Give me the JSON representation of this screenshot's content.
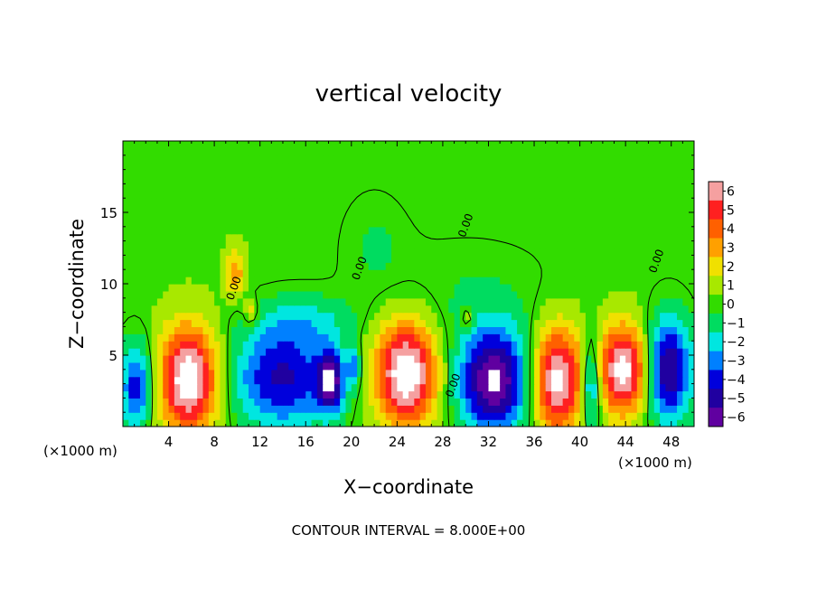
{
  "chart_data": {
    "type": "heatmap",
    "title": "vertical velocity",
    "xlabel": "X−coordinate",
    "ylabel": "Z−coordinate",
    "x_unit": "(×1000 m)",
    "x_unit_right": "(×1000 m)",
    "xlim": [
      0,
      50
    ],
    "ylim": [
      0,
      20
    ],
    "x_ticks": [
      4,
      8,
      12,
      16,
      20,
      24,
      28,
      32,
      36,
      40,
      44,
      48
    ],
    "y_ticks": [
      5,
      10,
      15
    ],
    "footer": "CONTOUR INTERVAL = 8.000E+00",
    "contour_label": "0.00",
    "colorbar": {
      "ticks": [
        6,
        5,
        4,
        3,
        2,
        1,
        0,
        -1,
        -2,
        -3,
        -4,
        -5,
        -6
      ],
      "tick_labels": [
        "6",
        "5",
        "4",
        "3",
        "2",
        "1",
        "0",
        "−1",
        "−2",
        "−3",
        "−4",
        "−5",
        "−6"
      ],
      "colors": [
        "#f5a0a0",
        "#ff2020",
        "#ff6000",
        "#ffa000",
        "#f0e000",
        "#a8e800",
        "#32dc00",
        "#00dc60",
        "#00e6e0",
        "#0080ff",
        "#0000dc",
        "#2000a0",
        "#6000a0"
      ]
    },
    "background_value": 0.3,
    "features": [
      {
        "x": 1.2,
        "z": 2.8,
        "w": -4.5,
        "sx": 1.0,
        "sz": 2.2
      },
      {
        "x": 5.8,
        "z": 3.3,
        "w": 7.5,
        "sx": 1.8,
        "sz": 2.6
      },
      {
        "x": 9.8,
        "z": 10.8,
        "w": 3.0,
        "sx": 0.6,
        "sz": 1.2
      },
      {
        "x": 11.2,
        "z": 8.0,
        "w": 2.5,
        "sx": 0.4,
        "sz": 0.6
      },
      {
        "x": 14.0,
        "z": 3.5,
        "w": -5.0,
        "sx": 3.2,
        "sz": 2.6
      },
      {
        "x": 18.2,
        "z": 3.2,
        "w": -5.5,
        "sx": 0.8,
        "sz": 1.5
      },
      {
        "x": 20.2,
        "z": 4.2,
        "w": -3.0,
        "sx": 0.4,
        "sz": 1.0
      },
      {
        "x": 24.8,
        "z": 3.8,
        "w": 7.5,
        "sx": 1.9,
        "sz": 2.6
      },
      {
        "x": 30.2,
        "z": 7.5,
        "w": 2.0,
        "sx": 0.4,
        "sz": 0.6
      },
      {
        "x": 32.5,
        "z": 3.2,
        "w": -7.0,
        "sx": 2.2,
        "sz": 2.6
      },
      {
        "x": 38.0,
        "z": 3.3,
        "w": 7.0,
        "sx": 1.6,
        "sz": 2.6
      },
      {
        "x": 41.0,
        "z": 3.0,
        "w": -4.5,
        "sx": 0.6,
        "sz": 2.2
      },
      {
        "x": 43.8,
        "z": 4.0,
        "w": 7.0,
        "sx": 1.5,
        "sz": 2.2
      },
      {
        "x": 47.8,
        "z": 4.0,
        "w": -6.0,
        "sx": 1.4,
        "sz": 2.6
      },
      {
        "x": 16.0,
        "z": 7.5,
        "w": -1.5,
        "sx": 3.0,
        "sz": 1.2
      },
      {
        "x": 30.0,
        "z": 9.0,
        "w": -0.8,
        "sx": 6.0,
        "sz": 3.0
      },
      {
        "x": 22.0,
        "z": 13.0,
        "w": -0.8,
        "sx": 2.0,
        "sz": 2.5
      }
    ]
  }
}
